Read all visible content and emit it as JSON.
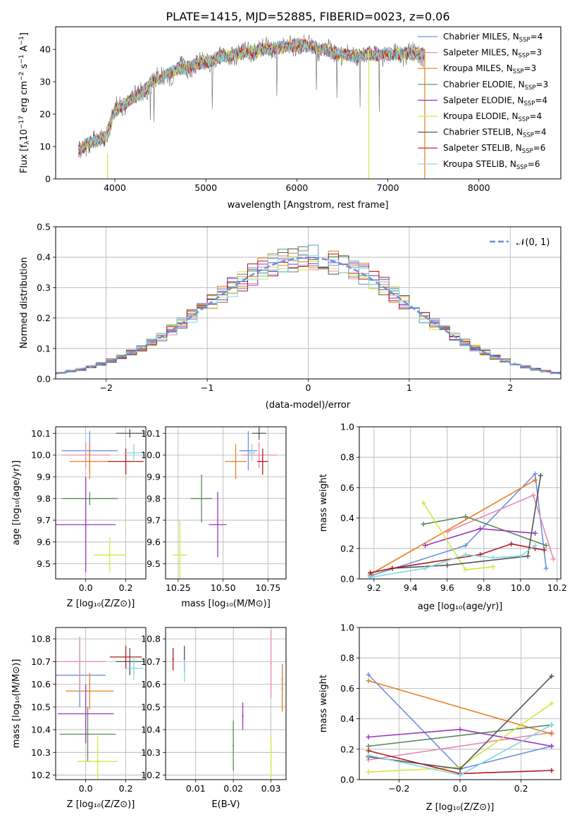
{
  "colors": [
    "#6b8fe0",
    "#e888b3",
    "#e8801e",
    "#5a8a5a",
    "#9b35c0",
    "#d6e640",
    "#555555",
    "#b01c1c",
    "#80d8e0"
  ],
  "chart_data": [
    {
      "type": "line",
      "title": "PLATE=1415, MJD=52885, FIBERID=0023, z=0.06",
      "xlabel": "wavelength [Angstrom, rest frame]",
      "ylabel_parts": [
        "Flux [f",
        "λ",
        "10",
        "−17",
        " erg cm",
        "−2",
        " s",
        "−1",
        " A",
        "−1",
        "]"
      ],
      "xlim": [
        3350,
        8900
      ],
      "ylim": [
        0,
        47
      ],
      "xticks": [
        4000,
        5000,
        6000,
        7000,
        8000
      ],
      "yticks": [
        0,
        10,
        20,
        30,
        40
      ],
      "legend_position": "right",
      "spectrum_x": [
        3600,
        3700,
        3800,
        3900,
        4000,
        4100,
        4200,
        4300,
        4400,
        4500,
        4600,
        4700,
        4800,
        4900,
        5000,
        5200,
        5400,
        5600,
        5800,
        6000,
        6200,
        6400,
        6600,
        6800,
        7000,
        7200,
        7400
      ],
      "spectrum_y": [
        9,
        11,
        12,
        13,
        21,
        23,
        25,
        26.5,
        30,
        31,
        32.5,
        34,
        34.5,
        35.5,
        36,
        38,
        39,
        40,
        40.5,
        41.5,
        40.5,
        39,
        38,
        38.5,
        38.5,
        38.8,
        38.5
      ],
      "series": [
        {
          "model": "Chabrier MILES",
          "nssp": "4"
        },
        {
          "model": "Salpeter MILES",
          "nssp": "3"
        },
        {
          "model": "Kroupa MILES",
          "nssp": "3"
        },
        {
          "model": "Chabrier ELODIE",
          "nssp": "3"
        },
        {
          "model": "Salpeter ELODIE",
          "nssp": "4"
        },
        {
          "model": "Kroupa ELODIE",
          "nssp": "4"
        },
        {
          "model": "Chabrier STELIB",
          "nssp": "4"
        },
        {
          "model": "Salpeter STELIB",
          "nssp": "6"
        },
        {
          "model": "Kroupa STELIB",
          "nssp": "6"
        }
      ],
      "nssp_label": "N",
      "nssp_sub": "SSP"
    },
    {
      "type": "histogram",
      "xlabel": "(data-model)/error",
      "ylabel": "Normed distribution",
      "xlim": [
        -2.5,
        2.5
      ],
      "ylim": [
        0,
        0.5
      ],
      "xticks": [
        -2,
        -1,
        0,
        1,
        2
      ],
      "xtick_labels": [
        "−2",
        "−1",
        "0",
        "1",
        "2"
      ],
      "yticks": [
        0.0,
        0.1,
        0.2,
        0.3,
        0.4,
        0.5
      ],
      "ytick_labels": [
        "0.0",
        "0.1",
        "0.2",
        "0.3",
        "0.4",
        "0.5"
      ],
      "bin_width": 0.1,
      "reference_curve": {
        "label": "𝒩(0, 1)",
        "mean": 0,
        "sigma": 1
      },
      "legend_position": "top-right"
    },
    {
      "type": "errorbar",
      "xlabel": "Z [log₁₀(Z/Z⊙)]",
      "ylabel": "age  [log₁₀(age/yr)]",
      "xlim": [
        -0.15,
        0.3
      ],
      "ylim": [
        9.43,
        10.13
      ],
      "xticks": [
        0.0,
        0.2
      ],
      "xtick_labels": [
        "0.0",
        "0.2"
      ],
      "yticks": [
        9.5,
        9.6,
        9.7,
        9.8,
        9.9,
        10.0,
        10.1
      ],
      "ytick_labels": [
        "9.5",
        "9.6",
        "9.7",
        "9.8",
        "9.9",
        "10.0",
        "10.1"
      ],
      "points": [
        {
          "x": 0.02,
          "y": 10.02,
          "xerr": 0.14,
          "yerr": 0.09
        },
        {
          "x": 0.0,
          "y": 10.0,
          "xerr": 0.12,
          "yerr": 0.06
        },
        {
          "x": 0.02,
          "y": 9.97,
          "xerr": 0.1,
          "yerr": 0.08
        },
        {
          "x": 0.02,
          "y": 9.8,
          "xerr": 0.14,
          "yerr": 0.03
        },
        {
          "x": 0.0,
          "y": 9.68,
          "xerr": 0.15,
          "yerr": 0.22
        },
        {
          "x": 0.12,
          "y": 9.54,
          "xerr": 0.08,
          "yerr": 0.08
        },
        {
          "x": 0.22,
          "y": 10.1,
          "xerr": 0.07,
          "yerr": 0.02
        },
        {
          "x": 0.2,
          "y": 9.97,
          "xerr": 0.09,
          "yerr": 0.06
        },
        {
          "x": 0.24,
          "y": 10.01,
          "xerr": 0.05,
          "yerr": 0.04
        }
      ]
    },
    {
      "type": "errorbar",
      "xlabel": "mass [log₁₀(M/M⊙)]",
      "ylabel": "",
      "xlim": [
        10.18,
        10.85
      ],
      "ylim": [
        9.43,
        10.13
      ],
      "xticks": [
        10.25,
        10.5,
        10.75
      ],
      "xtick_labels": [
        "10.25",
        "10.50",
        "10.75"
      ],
      "yticks": [
        9.5,
        9.6,
        9.7,
        9.8,
        9.9,
        10.0,
        10.1
      ],
      "ytick_labels": [
        "9.5",
        "9.6",
        "9.7",
        "9.8",
        "9.9",
        "10.0",
        "10.1"
      ],
      "points": [
        {
          "x": 10.64,
          "y": 10.02,
          "xerr": 0.05,
          "yerr": 0.09
        },
        {
          "x": 10.7,
          "y": 10.0,
          "xerr": 0.1,
          "yerr": 0.06
        },
        {
          "x": 10.57,
          "y": 9.97,
          "xerr": 0.06,
          "yerr": 0.08
        },
        {
          "x": 10.38,
          "y": 9.8,
          "xerr": 0.06,
          "yerr": 0.11
        },
        {
          "x": 10.47,
          "y": 9.68,
          "xerr": 0.05,
          "yerr": 0.15
        },
        {
          "x": 10.26,
          "y": 9.54,
          "xerr": 0.04,
          "yerr": 0.16
        },
        {
          "x": 10.7,
          "y": 10.1,
          "xerr": 0.04,
          "yerr": 0.03
        },
        {
          "x": 10.72,
          "y": 9.97,
          "xerr": 0.03,
          "yerr": 0.06
        },
        {
          "x": 10.66,
          "y": 10.01,
          "xerr": 0.02,
          "yerr": 0.04
        }
      ]
    },
    {
      "type": "line",
      "xlabel": "age  [log₁₀(age/yr)]",
      "ylabel": "mass weight",
      "xlim": [
        9.12,
        10.22
      ],
      "ylim": [
        0,
        1
      ],
      "xticks": [
        9.2,
        9.4,
        9.6,
        9.8,
        10.0,
        10.2
      ],
      "xtick_labels": [
        "9.2",
        "9.4",
        "9.6",
        "9.8",
        "10.0",
        "10.2"
      ],
      "yticks": [
        0.0,
        0.2,
        0.4,
        0.6,
        0.8,
        1.0
      ],
      "ytick_labels": [
        "0.0",
        "0.2",
        "0.4",
        "0.6",
        "0.8",
        "1.0"
      ],
      "series": [
        {
          "x": [
            9.18,
            9.7,
            10.08,
            10.14
          ],
          "y": [
            0.02,
            0.22,
            0.69,
            0.07
          ]
        },
        {
          "x": [
            9.6,
            10.07,
            10.18
          ],
          "y": [
            0.31,
            0.55,
            0.13
          ]
        },
        {
          "x": [
            9.18,
            10.08
          ],
          "y": [
            0.03,
            0.65
          ]
        },
        {
          "x": [
            9.47,
            9.7,
            10.14
          ],
          "y": [
            0.36,
            0.41,
            0.22
          ]
        },
        {
          "x": [
            9.48,
            9.78,
            10.08
          ],
          "y": [
            0.22,
            0.33,
            0.3
          ]
        },
        {
          "x": [
            9.47,
            9.7,
            9.85
          ],
          "y": [
            0.5,
            0.06,
            0.08
          ]
        },
        {
          "x": [
            9.18,
            9.3,
            9.6,
            10.04,
            10.11
          ],
          "y": [
            0.04,
            0.07,
            0.09,
            0.15,
            0.68
          ]
        },
        {
          "x": [
            9.18,
            9.3,
            9.78,
            9.95,
            10.08,
            10.13
          ],
          "y": [
            0.04,
            0.07,
            0.16,
            0.23,
            0.2,
            0.19
          ]
        },
        {
          "x": [
            9.18,
            9.48,
            9.7,
            9.85,
            10.0,
            10.08
          ],
          "y": [
            0.01,
            0.07,
            0.16,
            0.14,
            0.15,
            0.22
          ]
        }
      ]
    },
    {
      "type": "errorbar",
      "xlabel": "Z [log₁₀(Z/Z⊙)]",
      "ylabel": "mass [log₁₀(M/M⊙)]",
      "xlim": [
        -0.15,
        0.3
      ],
      "ylim": [
        10.18,
        10.85
      ],
      "xticks": [
        0.0,
        0.2
      ],
      "xtick_labels": [
        "0.0",
        "0.2"
      ],
      "yticks": [
        10.2,
        10.3,
        10.4,
        10.5,
        10.6,
        10.7,
        10.8
      ],
      "ytick_labels": [
        "10.2",
        "10.3",
        "10.4",
        "10.5",
        "10.6",
        "10.7",
        "10.8"
      ],
      "points": [
        {
          "x": -0.03,
          "y": 10.64,
          "xerr": 0.13,
          "yerr": 0.14
        },
        {
          "x": -0.03,
          "y": 10.7,
          "xerr": 0.13,
          "yerr": 0.11
        },
        {
          "x": 0.02,
          "y": 10.57,
          "xerr": 0.12,
          "yerr": 0.08
        },
        {
          "x": 0.01,
          "y": 10.38,
          "xerr": 0.14,
          "yerr": 0.12
        },
        {
          "x": 0.0,
          "y": 10.47,
          "xerr": 0.14,
          "yerr": 0.13
        },
        {
          "x": 0.06,
          "y": 10.26,
          "xerr": 0.1,
          "yerr": 0.11
        },
        {
          "x": 0.22,
          "y": 10.7,
          "xerr": 0.07,
          "yerr": 0.06
        },
        {
          "x": 0.2,
          "y": 10.72,
          "xerr": 0.08,
          "yerr": 0.05
        },
        {
          "x": 0.24,
          "y": 10.67,
          "xerr": 0.05,
          "yerr": 0.05
        }
      ]
    },
    {
      "type": "errorbar",
      "xlabel": "E(B-V)",
      "ylabel": "",
      "xlim": [
        0.002,
        0.034
      ],
      "ylim": [
        10.18,
        10.85
      ],
      "xticks": [
        0.01,
        0.02,
        0.03
      ],
      "xtick_labels": [
        "0.01",
        "0.02",
        "0.03"
      ],
      "yticks": [
        10.2,
        10.3,
        10.4,
        10.5,
        10.6,
        10.7,
        10.8
      ],
      "ytick_labels": [
        "10.2",
        "10.3",
        "10.4",
        "10.5",
        "10.6",
        "10.7",
        "10.8"
      ],
      "points": [
        {
          "x": 0.033,
          "y": 10.62,
          "xerr": 0.0002,
          "yerr": 0.07
        },
        {
          "x": 0.03,
          "y": 10.69,
          "xerr": 0.0002,
          "yerr": 0.15
        },
        {
          "x": 0.033,
          "y": 10.58,
          "xerr": 0.0002,
          "yerr": 0.1
        },
        {
          "x": 0.02,
          "y": 10.33,
          "xerr": 0.0002,
          "yerr": 0.11
        },
        {
          "x": 0.0225,
          "y": 10.46,
          "xerr": 0.0002,
          "yerr": 0.06
        },
        {
          "x": 0.03,
          "y": 10.24,
          "xerr": 0.0002,
          "yerr": 0.13
        },
        {
          "x": 0.007,
          "y": 10.71,
          "xerr": 0.0002,
          "yerr": 0.06
        },
        {
          "x": 0.004,
          "y": 10.71,
          "xerr": 0.0002,
          "yerr": 0.05
        },
        {
          "x": 0.007,
          "y": 10.66,
          "xerr": 0.0002,
          "yerr": 0.05
        }
      ]
    },
    {
      "type": "line",
      "xlabel": "Z [log₁₀(Z/Z⊙)]",
      "ylabel": "mass weight",
      "xlim": [
        -0.33,
        0.33
      ],
      "ylim": [
        0,
        1
      ],
      "xticks": [
        -0.2,
        0.0,
        0.2
      ],
      "xtick_labels": [
        "−0.2",
        "0.0",
        "0.2"
      ],
      "yticks": [
        0.0,
        0.2,
        0.4,
        0.6,
        0.8,
        1.0
      ],
      "ytick_labels": [
        "0.0",
        "0.2",
        "0.4",
        "0.6",
        "0.8",
        "1.0"
      ],
      "series": [
        {
          "x": [
            -0.3,
            0.0,
            0.3
          ],
          "y": [
            0.69,
            0.07,
            0.22
          ]
        },
        {
          "x": [
            -0.3,
            0.3
          ],
          "y": [
            0.13,
            0.31
          ]
        },
        {
          "x": [
            -0.3,
            0.3
          ],
          "y": [
            0.65,
            0.3
          ]
        },
        {
          "x": [
            -0.3,
            0.3
          ],
          "y": [
            0.22,
            0.36
          ]
        },
        {
          "x": [
            -0.3,
            0.0,
            0.3
          ],
          "y": [
            0.28,
            0.33,
            0.22
          ]
        },
        {
          "x": [
            -0.3,
            0.0,
            0.3
          ],
          "y": [
            0.05,
            0.08,
            0.5
          ]
        },
        {
          "x": [
            -0.3,
            0.0,
            0.3
          ],
          "y": [
            0.15,
            0.07,
            0.68
          ]
        },
        {
          "x": [
            -0.3,
            0.0,
            0.3
          ],
          "y": [
            0.19,
            0.04,
            0.06
          ]
        },
        {
          "x": [
            -0.3,
            0.0,
            0.3
          ],
          "y": [
            0.16,
            0.03,
            0.36
          ]
        }
      ]
    }
  ]
}
